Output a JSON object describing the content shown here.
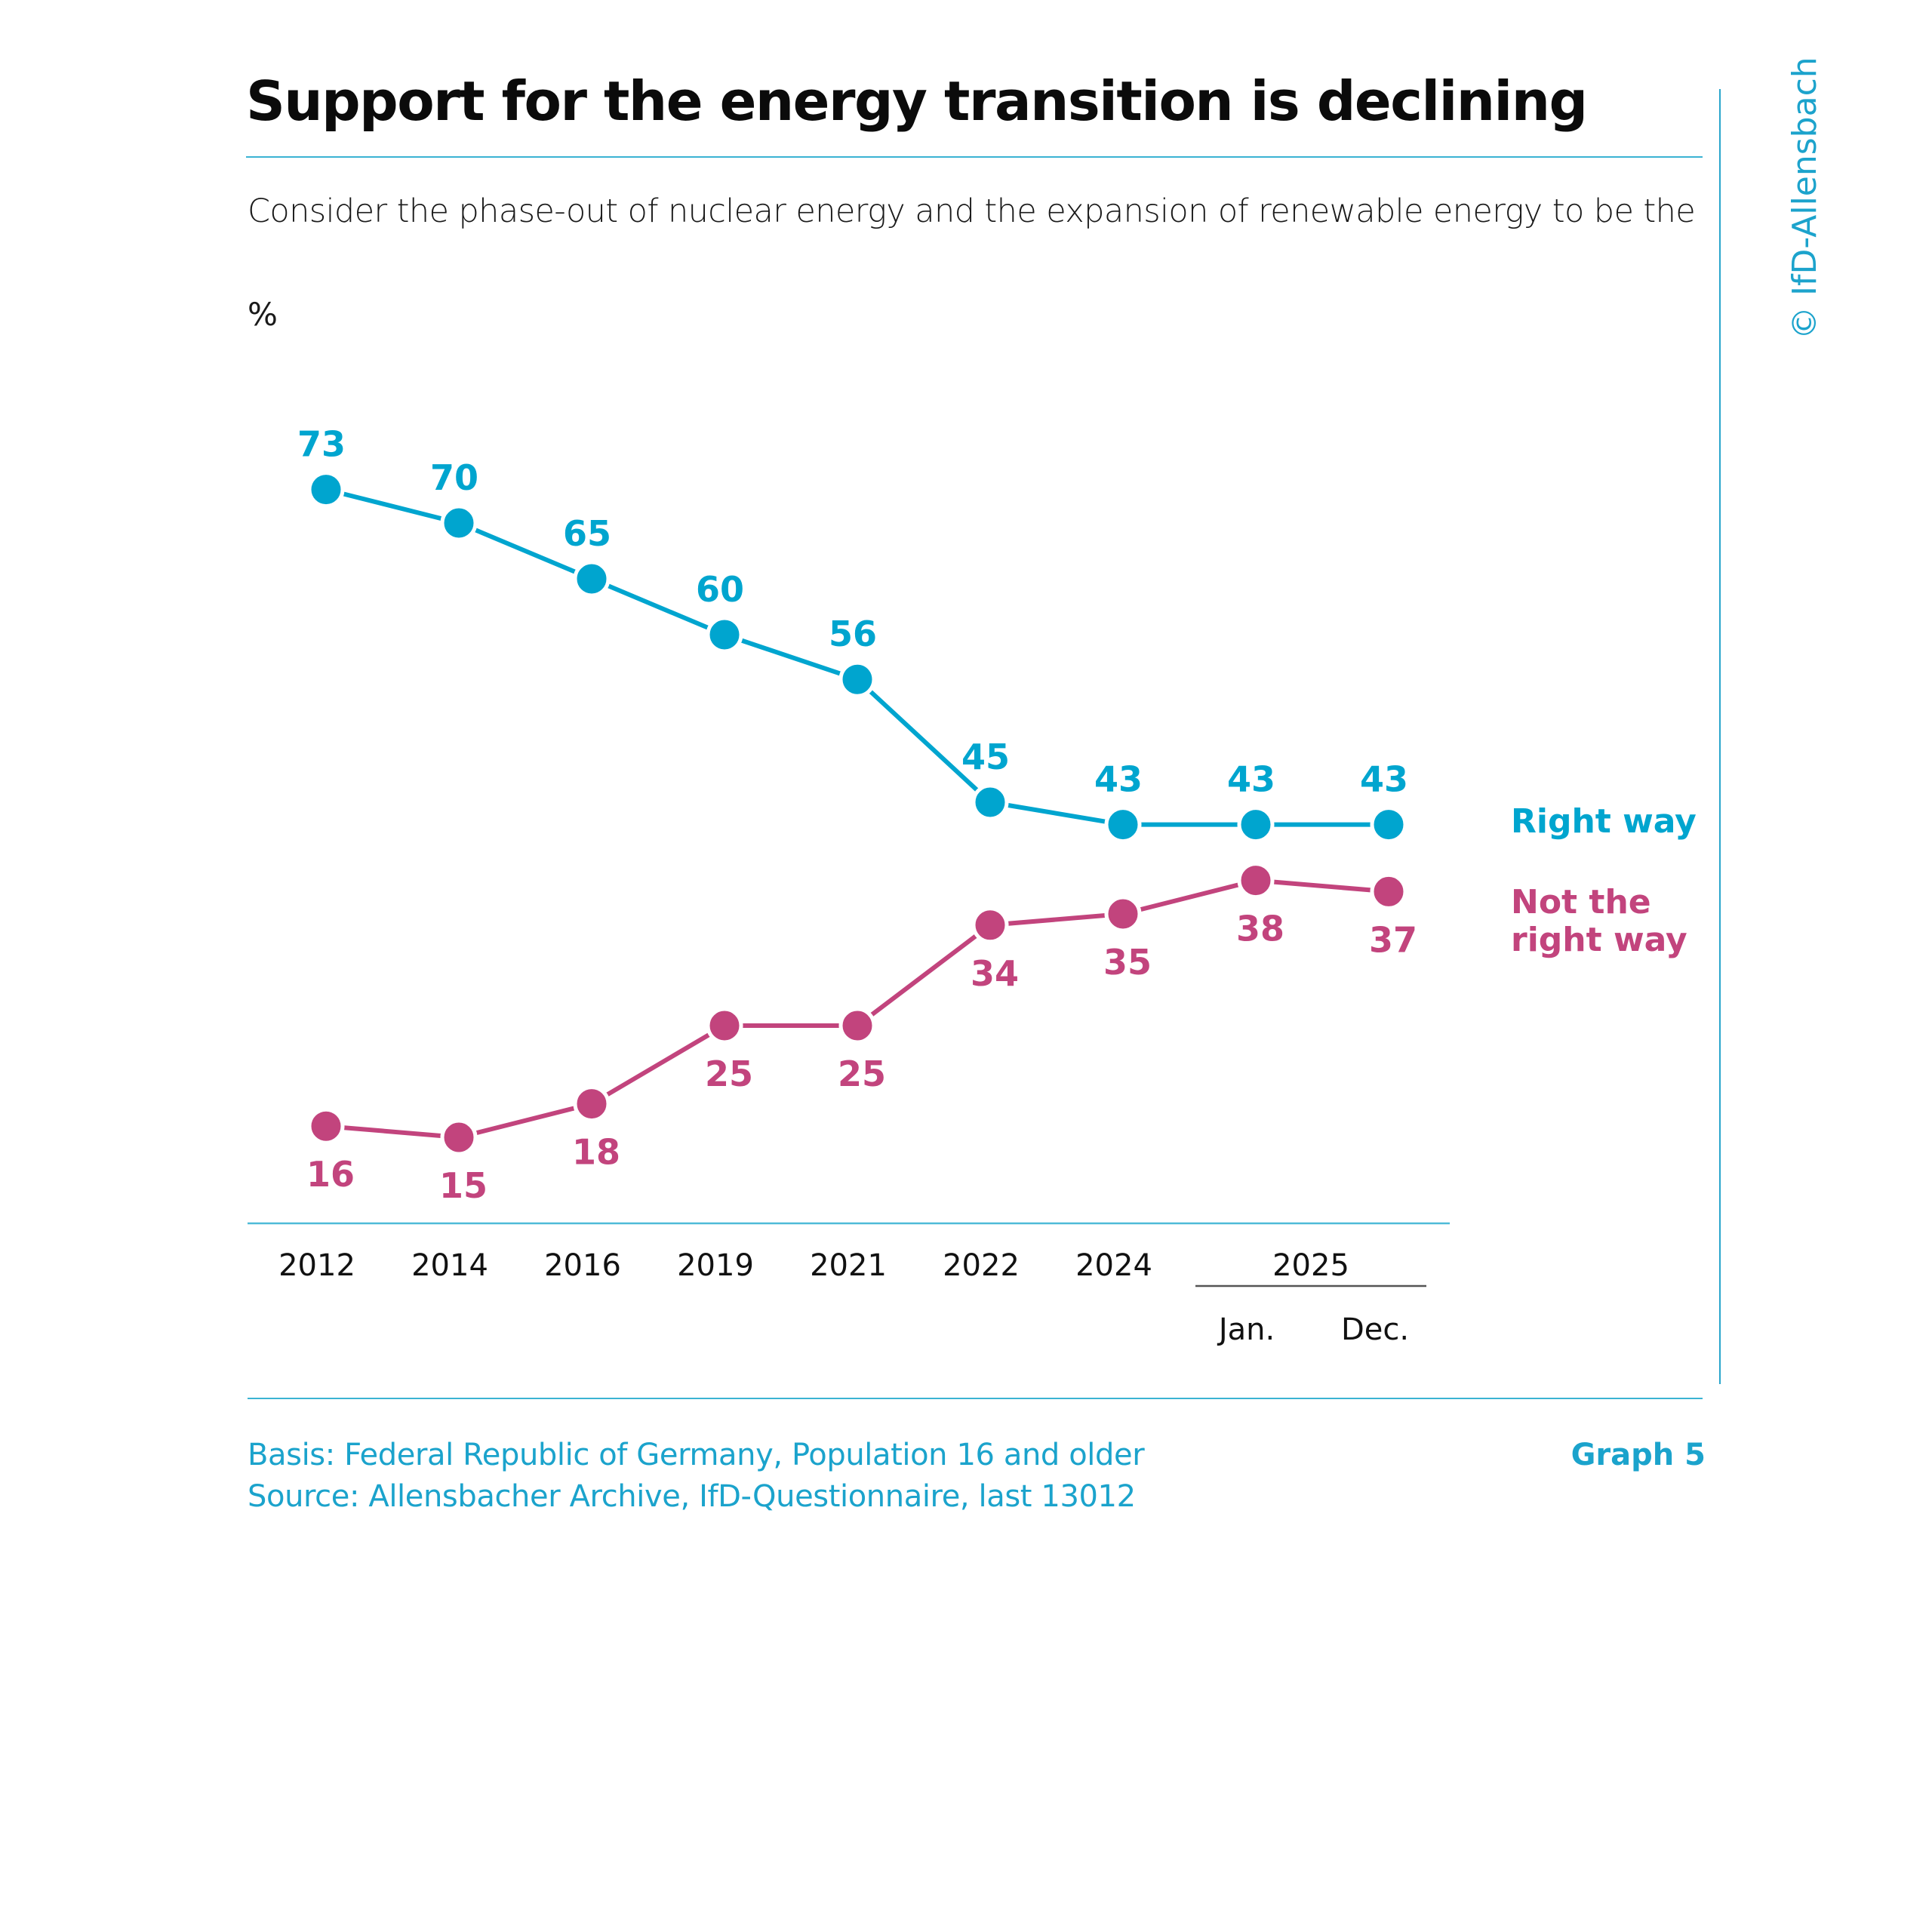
{
  "header": {
    "title": "Support for the energy transition is declining",
    "subtitle": "Consider the phase-out of nuclear energy and the expansion of renewable energy to be the",
    "unit": "%"
  },
  "credit": "© IfD-Allensbach",
  "footer": {
    "basis": "Basis: Federal Republic of Germany, Population 16 and older",
    "source": "Source: Allensbacher Archive, IfD-Questionnaire, last 13012",
    "graph_label": "Graph 5"
  },
  "colors": {
    "right_way": "#00A5CF",
    "not_right_way": "#C2447D",
    "rule": "#3BB3D3"
  },
  "chart_data": {
    "type": "line",
    "title": "Support for the energy transition is declining",
    "subtitle": "Consider the phase-out of nuclear energy and the expansion of renewable energy to be the",
    "ylabel": "%",
    "xlabel": "",
    "categories": [
      "2012",
      "2014",
      "2016",
      "2019",
      "2021",
      "2022",
      "2024",
      "2025 Jan.",
      "2025 Dec."
    ],
    "x_tick_labels": [
      "2012",
      "2014",
      "2016",
      "2019",
      "2021",
      "2022",
      "2024",
      "Jan.",
      "Dec."
    ],
    "x_group_labels": [
      {
        "label": "2025",
        "covers": [
          "Jan.",
          "Dec."
        ]
      }
    ],
    "ylim": [
      0,
      80
    ],
    "grid": false,
    "legend": "right (inline labels at line ends)",
    "series": [
      {
        "name": "Right way",
        "color": "#00A5CF",
        "label_position": "above",
        "values": [
          73,
          70,
          65,
          60,
          56,
          45,
          43,
          43,
          43
        ]
      },
      {
        "name": "Not the right way",
        "color": "#C2447D",
        "label_position": "below",
        "values": [
          16,
          15,
          18,
          25,
          25,
          34,
          35,
          38,
          37
        ]
      }
    ],
    "legend_entries": [
      {
        "lines": [
          "Right way"
        ],
        "color": "#00A5CF"
      },
      {
        "lines": [
          "Not the",
          "right way"
        ],
        "color": "#C2447D"
      }
    ]
  }
}
